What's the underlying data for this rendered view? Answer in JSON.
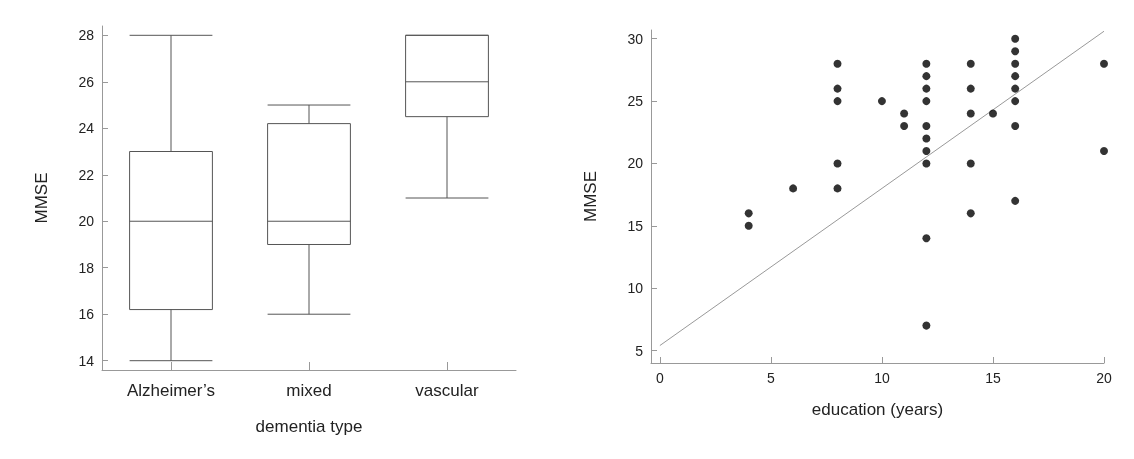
{
  "chart_data": [
    {
      "type": "box",
      "xlabel": "dementia type",
      "ylabel": "MMSE",
      "categories": [
        "Alzheimer’s",
        "mixed",
        "vascular"
      ],
      "boxes": [
        {
          "low": 14,
          "q1": 16.2,
          "median": 20,
          "q3": 23,
          "high": 28
        },
        {
          "low": 16,
          "q1": 19,
          "median": 20,
          "q3": 24.2,
          "high": 25
        },
        {
          "low": 21,
          "q1": 24.5,
          "median": 26,
          "q3": 28,
          "high": 28
        }
      ],
      "color": "#555555",
      "ylim": [
        13.6,
        28.4
      ],
      "yticks": [
        14,
        16,
        18,
        20,
        22,
        24,
        26,
        28
      ],
      "grid": false
    },
    {
      "type": "scatter",
      "xlabel": "education (years)",
      "ylabel": "MMSE",
      "grid": false,
      "xlim": [
        -0.4,
        20
      ],
      "xticks": [
        0,
        5,
        10,
        15,
        20
      ],
      "ylim": [
        4,
        30.7
      ],
      "yticks": [
        5,
        10,
        15,
        20,
        25,
        30
      ],
      "series": [
        {
          "type": "scatter",
          "marker": "circle",
          "color": "#000000",
          "x": [
            4,
            4,
            6,
            8,
            8,
            8,
            8,
            8,
            10,
            11,
            11,
            12,
            12,
            12,
            12,
            12,
            12,
            12,
            12,
            12,
            12,
            14,
            14,
            14,
            14,
            14,
            15,
            16,
            16,
            16,
            16,
            16,
            16,
            16,
            16,
            20,
            20
          ],
          "values": [
            16,
            15,
            18,
            28,
            26,
            25,
            20,
            18,
            25,
            24,
            23,
            28,
            27,
            26,
            25,
            23,
            22,
            21,
            20,
            14,
            7,
            28,
            26,
            24,
            20,
            16,
            24,
            30,
            29,
            28,
            27,
            26,
            25,
            23,
            17,
            28,
            21
          ]
        },
        {
          "type": "line",
          "color": "#999999",
          "x": [
            0,
            20
          ],
          "values": [
            5.4,
            30.6
          ]
        }
      ]
    }
  ]
}
